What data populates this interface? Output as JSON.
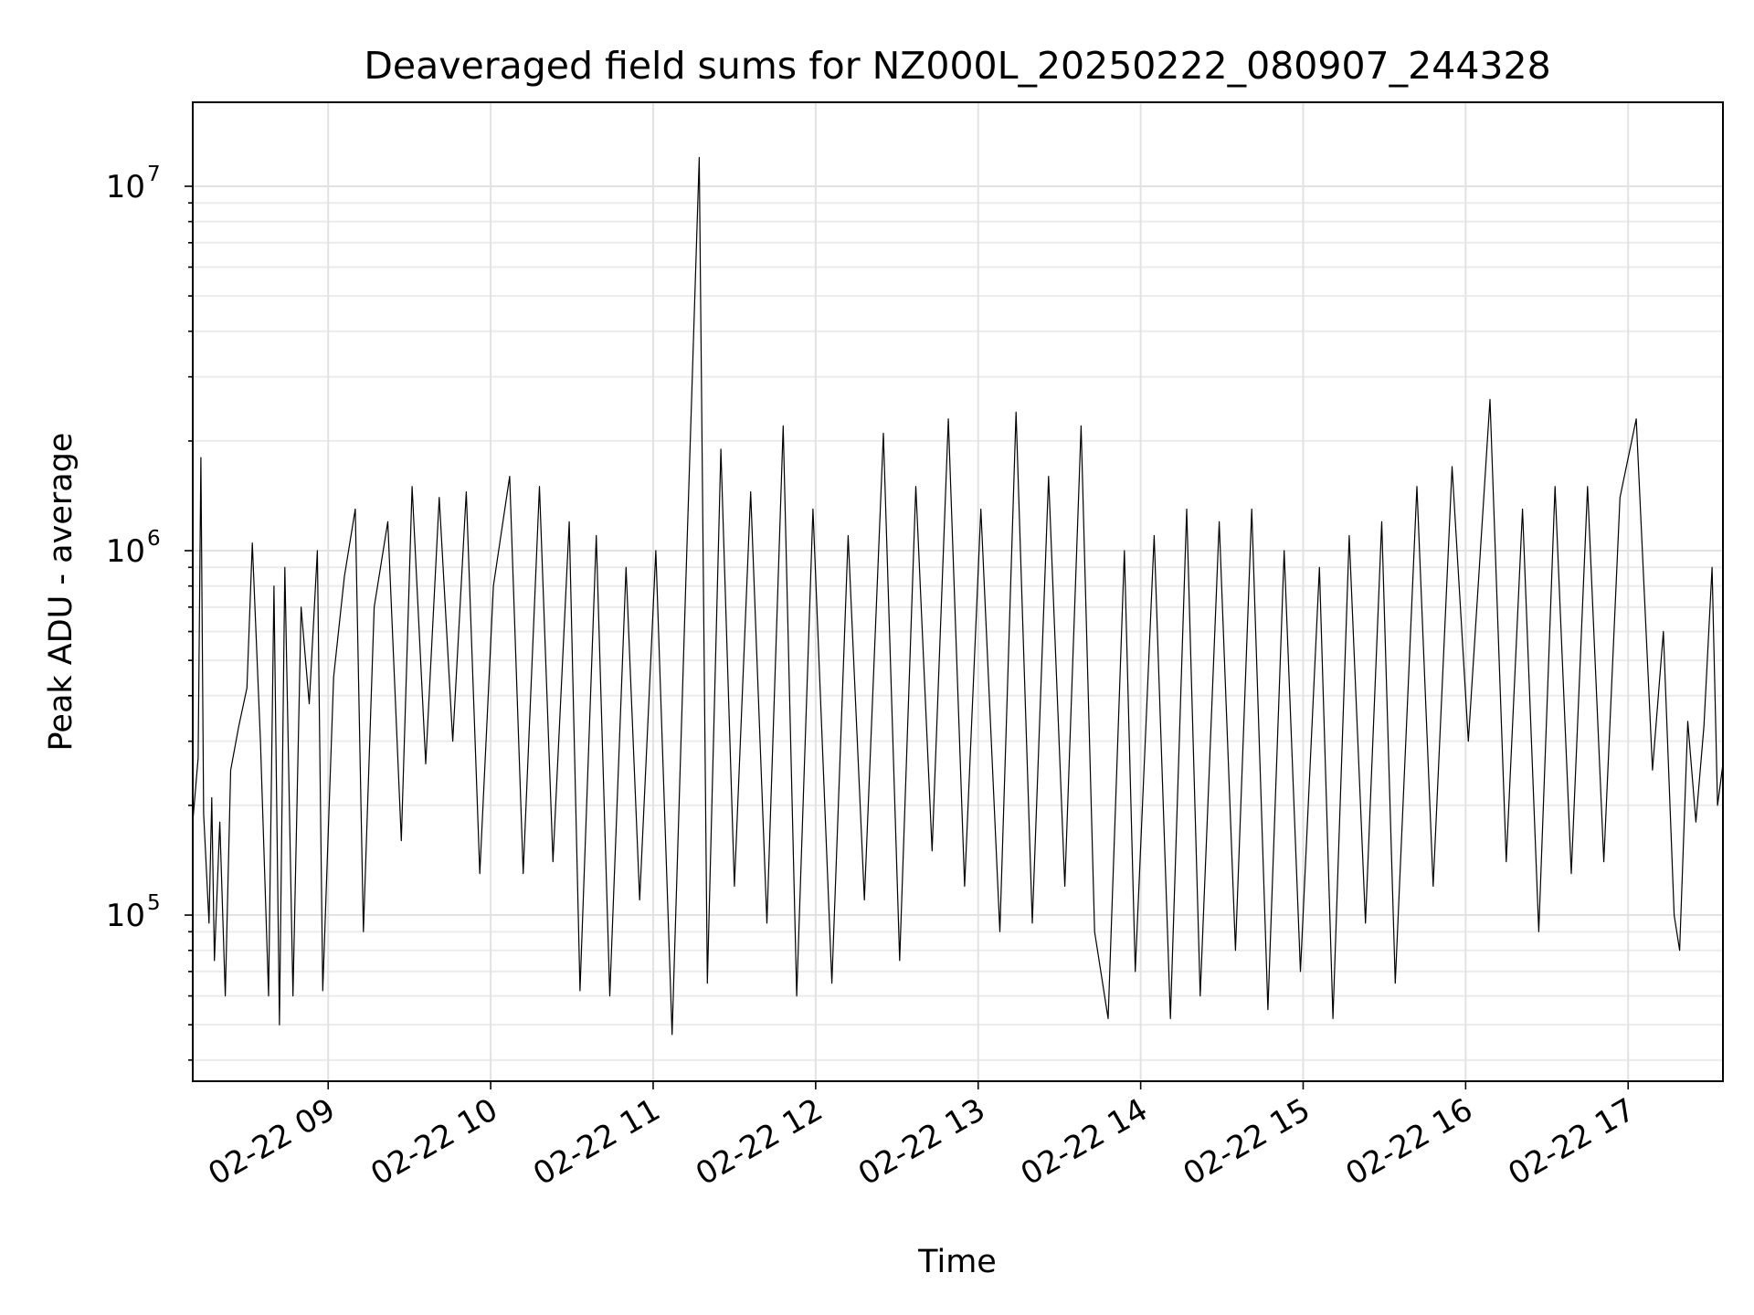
{
  "chart_data": {
    "type": "line",
    "title": "Deaveraged field sums for NZ000L_20250222_080907_244328",
    "xlabel": "Time",
    "ylabel": "Peak ADU - average",
    "x_axis": {
      "type": "time",
      "start": "2025-02-22T08:10",
      "end": "2025-02-22T17:35",
      "ticks": [
        {
          "time": "2025-02-22T09:00",
          "label": "02-22 09"
        },
        {
          "time": "2025-02-22T10:00",
          "label": "02-22 10"
        },
        {
          "time": "2025-02-22T11:00",
          "label": "02-22 11"
        },
        {
          "time": "2025-02-22T12:00",
          "label": "02-22 12"
        },
        {
          "time": "2025-02-22T13:00",
          "label": "02-22 13"
        },
        {
          "time": "2025-02-22T14:00",
          "label": "02-22 14"
        },
        {
          "time": "2025-02-22T15:00",
          "label": "02-22 15"
        },
        {
          "time": "2025-02-22T16:00",
          "label": "02-22 16"
        },
        {
          "time": "2025-02-22T17:00",
          "label": "02-22 17"
        }
      ]
    },
    "y_axis": {
      "scale": "log",
      "ylim": [
        35000,
        17000000
      ],
      "ticks": [
        {
          "value": 100000,
          "base": "10",
          "exp": "5"
        },
        {
          "value": 1000000,
          "base": "10",
          "exp": "6"
        },
        {
          "value": 10000000,
          "base": "10",
          "exp": "7"
        }
      ]
    },
    "grid": true,
    "series": [
      {
        "color": "#000000",
        "points": [
          [
            "2025-02-22T08:10",
            180000
          ],
          [
            "2025-02-22T08:12",
            270000
          ],
          [
            "2025-02-22T08:13",
            1800000
          ],
          [
            "2025-02-22T08:14",
            190000
          ],
          [
            "2025-02-22T08:16",
            95000
          ],
          [
            "2025-02-22T08:17",
            210000
          ],
          [
            "2025-02-22T08:18",
            75000
          ],
          [
            "2025-02-22T08:20",
            180000
          ],
          [
            "2025-02-22T08:22",
            60000
          ],
          [
            "2025-02-22T08:24",
            250000
          ],
          [
            "2025-02-22T08:27",
            330000
          ],
          [
            "2025-02-22T08:30",
            420000
          ],
          [
            "2025-02-22T08:32",
            1050000
          ],
          [
            "2025-02-22T08:35",
            300000
          ],
          [
            "2025-02-22T08:38",
            60000
          ],
          [
            "2025-02-22T08:40",
            800000
          ],
          [
            "2025-02-22T08:42",
            50000
          ],
          [
            "2025-02-22T08:44",
            900000
          ],
          [
            "2025-02-22T08:47",
            60000
          ],
          [
            "2025-02-22T08:50",
            700000
          ],
          [
            "2025-02-22T08:53",
            380000
          ],
          [
            "2025-02-22T08:56",
            1000000
          ],
          [
            "2025-02-22T08:58",
            62000
          ],
          [
            "2025-02-22T09:02",
            450000
          ],
          [
            "2025-02-22T09:06",
            850000
          ],
          [
            "2025-02-22T09:10",
            1300000
          ],
          [
            "2025-02-22T09:13",
            90000
          ],
          [
            "2025-02-22T09:17",
            700000
          ],
          [
            "2025-02-22T09:22",
            1200000
          ],
          [
            "2025-02-22T09:27",
            160000
          ],
          [
            "2025-02-22T09:31",
            1500000
          ],
          [
            "2025-02-22T09:36",
            260000
          ],
          [
            "2025-02-22T09:41",
            1400000
          ],
          [
            "2025-02-22T09:46",
            300000
          ],
          [
            "2025-02-22T09:51",
            1450000
          ],
          [
            "2025-02-22T09:56",
            130000
          ],
          [
            "2025-02-22T10:01",
            800000
          ],
          [
            "2025-02-22T10:07",
            1600000
          ],
          [
            "2025-02-22T10:12",
            130000
          ],
          [
            "2025-02-22T10:18",
            1500000
          ],
          [
            "2025-02-22T10:23",
            140000
          ],
          [
            "2025-02-22T10:29",
            1200000
          ],
          [
            "2025-02-22T10:33",
            62000
          ],
          [
            "2025-02-22T10:39",
            1100000
          ],
          [
            "2025-02-22T10:44",
            60000
          ],
          [
            "2025-02-22T10:50",
            900000
          ],
          [
            "2025-02-22T10:55",
            110000
          ],
          [
            "2025-02-22T11:01",
            1000000
          ],
          [
            "2025-02-22T11:07",
            47000
          ],
          [
            "2025-02-22T11:12",
            800000
          ],
          [
            "2025-02-22T11:17",
            12000000
          ],
          [
            "2025-02-22T11:20",
            65000
          ],
          [
            "2025-02-22T11:25",
            1900000
          ],
          [
            "2025-02-22T11:30",
            120000
          ],
          [
            "2025-02-22T11:36",
            1450000
          ],
          [
            "2025-02-22T11:42",
            95000
          ],
          [
            "2025-02-22T11:48",
            2200000
          ],
          [
            "2025-02-22T11:53",
            60000
          ],
          [
            "2025-02-22T11:59",
            1300000
          ],
          [
            "2025-02-22T12:06",
            65000
          ],
          [
            "2025-02-22T12:12",
            1100000
          ],
          [
            "2025-02-22T12:18",
            110000
          ],
          [
            "2025-02-22T12:25",
            2100000
          ],
          [
            "2025-02-22T12:31",
            75000
          ],
          [
            "2025-02-22T12:37",
            1500000
          ],
          [
            "2025-02-22T12:43",
            150000
          ],
          [
            "2025-02-22T12:49",
            2300000
          ],
          [
            "2025-02-22T12:55",
            120000
          ],
          [
            "2025-02-22T13:01",
            1300000
          ],
          [
            "2025-02-22T13:08",
            90000
          ],
          [
            "2025-02-22T13:14",
            2400000
          ],
          [
            "2025-02-22T13:20",
            95000
          ],
          [
            "2025-02-22T13:26",
            1600000
          ],
          [
            "2025-02-22T13:32",
            120000
          ],
          [
            "2025-02-22T13:38",
            2200000
          ],
          [
            "2025-02-22T13:43",
            90000
          ],
          [
            "2025-02-22T13:48",
            52000
          ],
          [
            "2025-02-22T13:54",
            1000000
          ],
          [
            "2025-02-22T13:58",
            70000
          ],
          [
            "2025-02-22T14:05",
            1100000
          ],
          [
            "2025-02-22T14:11",
            52000
          ],
          [
            "2025-02-22T14:17",
            1300000
          ],
          [
            "2025-02-22T14:22",
            60000
          ],
          [
            "2025-02-22T14:29",
            1200000
          ],
          [
            "2025-02-22T14:35",
            80000
          ],
          [
            "2025-02-22T14:41",
            1300000
          ],
          [
            "2025-02-22T14:47",
            55000
          ],
          [
            "2025-02-22T14:53",
            1000000
          ],
          [
            "2025-02-22T14:59",
            70000
          ],
          [
            "2025-02-22T15:06",
            900000
          ],
          [
            "2025-02-22T15:11",
            52000
          ],
          [
            "2025-02-22T15:17",
            1100000
          ],
          [
            "2025-02-22T15:23",
            95000
          ],
          [
            "2025-02-22T15:29",
            1200000
          ],
          [
            "2025-02-22T15:34",
            65000
          ],
          [
            "2025-02-22T15:42",
            1500000
          ],
          [
            "2025-02-22T15:48",
            120000
          ],
          [
            "2025-02-22T15:55",
            1700000
          ],
          [
            "2025-02-22T16:01",
            300000
          ],
          [
            "2025-02-22T16:09",
            2600000
          ],
          [
            "2025-02-22T16:15",
            140000
          ],
          [
            "2025-02-22T16:21",
            1300000
          ],
          [
            "2025-02-22T16:27",
            90000
          ],
          [
            "2025-02-22T16:33",
            1500000
          ],
          [
            "2025-02-22T16:39",
            130000
          ],
          [
            "2025-02-22T16:45",
            1500000
          ],
          [
            "2025-02-22T16:51",
            140000
          ],
          [
            "2025-02-22T16:57",
            1400000
          ],
          [
            "2025-02-22T17:03",
            2300000
          ],
          [
            "2025-02-22T17:09",
            250000
          ],
          [
            "2025-02-22T17:13",
            600000
          ],
          [
            "2025-02-22T17:17",
            100000
          ],
          [
            "2025-02-22T17:19",
            80000
          ],
          [
            "2025-02-22T17:22",
            340000
          ],
          [
            "2025-02-22T17:25",
            180000
          ],
          [
            "2025-02-22T17:28",
            330000
          ],
          [
            "2025-02-22T17:31",
            900000
          ],
          [
            "2025-02-22T17:33",
            200000
          ],
          [
            "2025-02-22T17:35",
            260000
          ]
        ]
      }
    ]
  }
}
